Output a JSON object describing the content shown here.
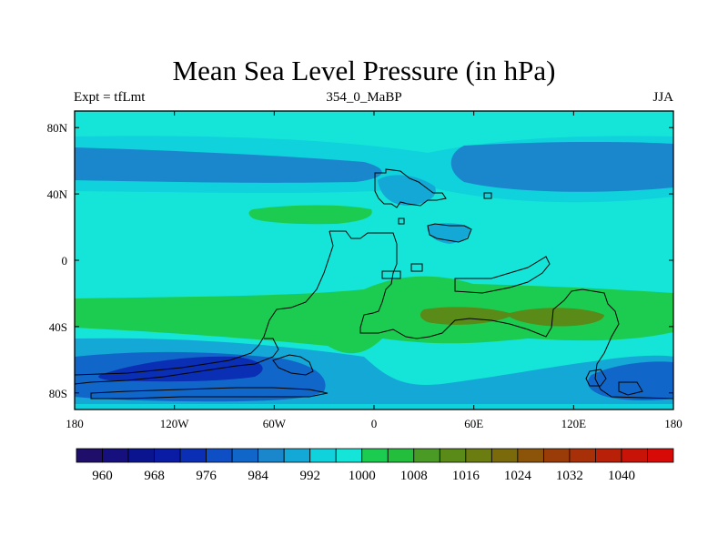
{
  "chart_data": {
    "type": "heatmap",
    "title": "Mean Sea Level Pressure (in hPa)",
    "left_string": "Expt = tfLmt",
    "center_string": "354_0_MaBP",
    "right_string": "JJA",
    "x_ticks": [
      "180",
      "120W",
      "60W",
      "0",
      "60E",
      "120E",
      "180"
    ],
    "x_tick_values": [
      -180,
      -120,
      -60,
      0,
      60,
      120,
      180
    ],
    "y_ticks": [
      "80N",
      "40N",
      "0",
      "40S",
      "80S"
    ],
    "y_tick_values": [
      80,
      40,
      0,
      -40,
      -80
    ],
    "xlim": [
      -180,
      180
    ],
    "ylim": [
      -90,
      90
    ],
    "colorbar": {
      "levels": [
        956,
        960,
        964,
        968,
        972,
        976,
        980,
        984,
        988,
        992,
        996,
        1000,
        1004,
        1008,
        1012,
        1016,
        1020,
        1024,
        1028,
        1032,
        1036,
        1040,
        1044
      ],
      "colors": [
        "#1f0f6b",
        "#15107e",
        "#0a148f",
        "#0a1ca3",
        "#0a2fb5",
        "#0e4fc5",
        "#1167c9",
        "#1a86cc",
        "#14a8d6",
        "#0fd2dc",
        "#14e5d8",
        "#1ccc50",
        "#22be3c",
        "#4a9a26",
        "#5a8a18",
        "#6b7c10",
        "#7a6a0c",
        "#8c5408",
        "#9a3c08",
        "#a83008",
        "#b82008",
        "#c81408",
        "#d80a08"
      ],
      "labels": [
        "960",
        "968",
        "976",
        "984",
        "992",
        "1000",
        "1008",
        "1016",
        "1024",
        "1032",
        "1040"
      ],
      "label_values": [
        960,
        968,
        976,
        984,
        992,
        1000,
        1008,
        1016,
        1024,
        1032,
        1040
      ]
    },
    "field_regions": [
      {
        "name": "background",
        "value": 998
      },
      {
        "name": "north-high-band",
        "value": 993
      },
      {
        "name": "north-low-pacific",
        "value": 987
      },
      {
        "name": "north-low-asia",
        "value": 987
      },
      {
        "name": "north-atlantic-high",
        "value": 1001
      },
      {
        "name": "mediterranean-low",
        "value": 990
      },
      {
        "name": "middle-east-low",
        "value": 989
      },
      {
        "name": "southern-high-belt",
        "value": 1003
      },
      {
        "name": "indian-ocean-high",
        "value": 1014
      },
      {
        "name": "southern-low-band",
        "value": 991
      },
      {
        "name": "southern-deep-low-west",
        "value": 983
      },
      {
        "name": "southern-deepest-core",
        "value": 974
      },
      {
        "name": "southern-deep-low-east",
        "value": 982
      },
      {
        "name": "polar-ring",
        "value": 993
      }
    ]
  }
}
